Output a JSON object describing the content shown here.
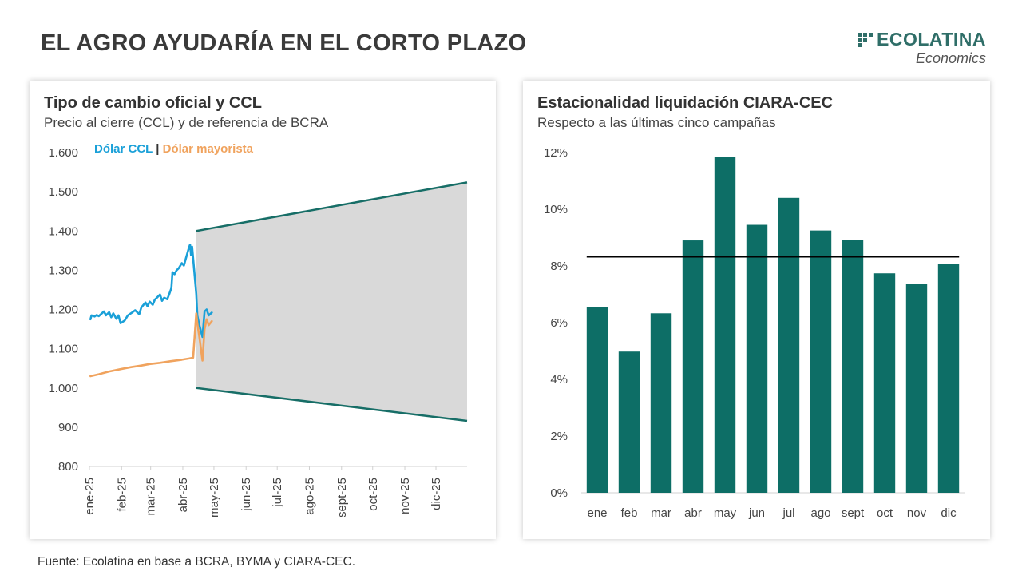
{
  "page": {
    "title": "EL AGRO AYUDARÍA EN EL CORTO PLAZO",
    "source": "Fuente: Ecolatina en base a BCRA, BYMA y CIARA-CEC."
  },
  "brand": {
    "name": "ECOLATINA",
    "subtitle": "Economics",
    "icon": "grid-squares-icon",
    "color": "#2f6e68"
  },
  "chart_data": [
    {
      "type": "line",
      "title": "Tipo de cambio oficial y CCL",
      "subtitle": "Precio al cierre (CCL) y de referencia de BCRA",
      "legend": {
        "placement": "top-left",
        "separator": "|"
      },
      "ylim": [
        800,
        1600
      ],
      "yticks": [
        800,
        900,
        1000,
        1100,
        1200,
        1300,
        1400,
        1500,
        1600
      ],
      "ytick_labels": [
        "800",
        "900",
        "1.000",
        "1.100",
        "1.200",
        "1.300",
        "1.400",
        "1.500",
        "1.600"
      ],
      "xlim": [
        "2025-01-01",
        "2025-12-31"
      ],
      "xticks": [
        "2025-01-01",
        "2025-02-01",
        "2025-03-01",
        "2025-04-01",
        "2025-05-01",
        "2025-06-01",
        "2025-07-01",
        "2025-08-01",
        "2025-09-01",
        "2025-10-01",
        "2025-11-01",
        "2025-12-01"
      ],
      "xtick_labels": [
        "ene-25",
        "feb-25",
        "mar-25",
        "abr-25",
        "may-25",
        "jun-25",
        "jul-25",
        "ago-25",
        "sept-25",
        "oct-25",
        "nov-25",
        "dic-25"
      ],
      "grid": false,
      "series": [
        {
          "name": "Dólar CCL",
          "color": "#1aa0d8",
          "points": [
            [
              "2025-01-02",
              1175
            ],
            [
              "2025-01-03",
              1185
            ],
            [
              "2025-01-06",
              1182
            ],
            [
              "2025-01-08",
              1186
            ],
            [
              "2025-01-10",
              1183
            ],
            [
              "2025-01-13",
              1190
            ],
            [
              "2025-01-15",
              1195
            ],
            [
              "2025-01-17",
              1185
            ],
            [
              "2025-01-20",
              1193
            ],
            [
              "2025-01-22",
              1180
            ],
            [
              "2025-01-24",
              1190
            ],
            [
              "2025-01-27",
              1176
            ],
            [
              "2025-01-29",
              1185
            ],
            [
              "2025-01-31",
              1165
            ],
            [
              "2025-02-04",
              1172
            ],
            [
              "2025-02-07",
              1185
            ],
            [
              "2025-02-11",
              1192
            ],
            [
              "2025-02-14",
              1198
            ],
            [
              "2025-02-18",
              1188
            ],
            [
              "2025-02-20",
              1205
            ],
            [
              "2025-02-24",
              1218
            ],
            [
              "2025-02-26",
              1208
            ],
            [
              "2025-02-28",
              1220
            ],
            [
              "2025-03-03",
              1212
            ],
            [
              "2025-03-05",
              1225
            ],
            [
              "2025-03-07",
              1230
            ],
            [
              "2025-03-10",
              1238
            ],
            [
              "2025-03-12",
              1222
            ],
            [
              "2025-03-14",
              1230
            ],
            [
              "2025-03-17",
              1226
            ],
            [
              "2025-03-19",
              1240
            ],
            [
              "2025-03-21",
              1255
            ],
            [
              "2025-03-22",
              1295
            ],
            [
              "2025-03-24",
              1290
            ],
            [
              "2025-03-26",
              1300
            ],
            [
              "2025-03-28",
              1305
            ],
            [
              "2025-03-31",
              1318
            ],
            [
              "2025-04-02",
              1312
            ],
            [
              "2025-04-04",
              1330
            ],
            [
              "2025-04-07",
              1358
            ],
            [
              "2025-04-08",
              1365
            ],
            [
              "2025-04-09",
              1338
            ],
            [
              "2025-04-10",
              1360
            ],
            [
              "2025-04-11",
              1330
            ],
            [
              "2025-04-14",
              1240
            ],
            [
              "2025-04-15",
              1185
            ],
            [
              "2025-04-17",
              1160
            ],
            [
              "2025-04-20",
              1130
            ],
            [
              "2025-04-22",
              1195
            ],
            [
              "2025-04-24",
              1200
            ],
            [
              "2025-04-26",
              1185
            ],
            [
              "2025-04-29",
              1192
            ]
          ]
        },
        {
          "name": "Dólar mayorista",
          "color": "#f0a35e",
          "points": [
            [
              "2025-01-02",
              1030
            ],
            [
              "2025-01-10",
              1035
            ],
            [
              "2025-01-20",
              1042
            ],
            [
              "2025-01-31",
              1048
            ],
            [
              "2025-02-10",
              1053
            ],
            [
              "2025-02-20",
              1057
            ],
            [
              "2025-02-28",
              1061
            ],
            [
              "2025-03-10",
              1064
            ],
            [
              "2025-03-20",
              1068
            ],
            [
              "2025-03-31",
              1072
            ],
            [
              "2025-04-07",
              1075
            ],
            [
              "2025-04-11",
              1077
            ],
            [
              "2025-04-14",
              1190
            ],
            [
              "2025-04-15",
              1165
            ],
            [
              "2025-04-17",
              1130
            ],
            [
              "2025-04-20",
              1070
            ],
            [
              "2025-04-22",
              1150
            ],
            [
              "2025-04-24",
              1175
            ],
            [
              "2025-04-26",
              1160
            ],
            [
              "2025-04-29",
              1170
            ]
          ]
        }
      ],
      "band": {
        "color": "#d9d9d9",
        "edge_color": "#176e67",
        "start": "2025-04-14",
        "end": "2025-12-31",
        "upper": [
          1400,
          1524
        ],
        "lower": [
          1000,
          916
        ]
      }
    },
    {
      "type": "bar",
      "title": "Estacionalidad liquidación CIARA-CEC",
      "subtitle": "Respecto a las últimas cinco campañas",
      "categories": [
        "ene",
        "feb",
        "mar",
        "abr",
        "may",
        "jun",
        "jul",
        "ago",
        "sept",
        "oct",
        "nov",
        "dic"
      ],
      "values": [
        6.55,
        4.98,
        6.33,
        8.9,
        11.84,
        9.45,
        10.4,
        9.25,
        8.92,
        7.74,
        7.38,
        8.08
      ],
      "unit": "%",
      "ylim": [
        0,
        12
      ],
      "yticks": [
        0,
        2,
        4,
        6,
        8,
        10,
        12
      ],
      "ytick_labels": [
        "0%",
        "2%",
        "4%",
        "6%",
        "8%",
        "10%",
        "12%"
      ],
      "bar_color": "#0d6e66",
      "reference_line": {
        "value": 8.33,
        "color": "#000000"
      },
      "grid": false
    }
  ]
}
